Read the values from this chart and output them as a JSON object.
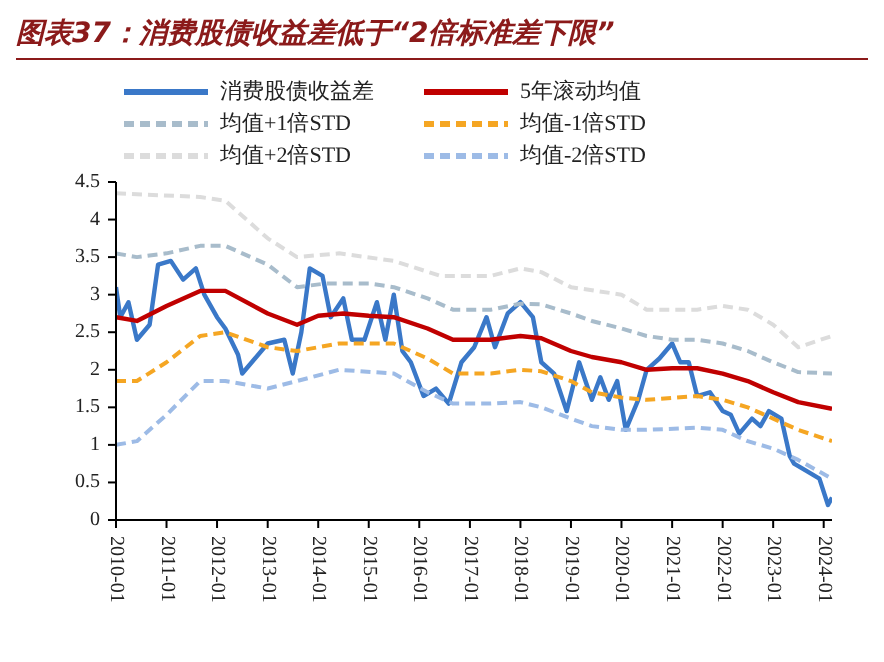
{
  "chart_data": {
    "type": "line",
    "title": "图表37：消费股债收益差低于“2倍标准差下限”",
    "legend": "top",
    "grid": false,
    "marker": "none",
    "xlim": [
      "2010-01",
      "2024-03"
    ],
    "xticks": [
      "2010-01",
      "2011-01",
      "2012-01",
      "2013-01",
      "2014-01",
      "2015-01",
      "2016-01",
      "2017-01",
      "2018-01",
      "2019-01",
      "2020-01",
      "2021-01",
      "2022-01",
      "2023-01",
      "2024-01"
    ],
    "ylim": [
      0,
      4.5
    ],
    "yticks": [
      0,
      0.5,
      1,
      1.5,
      2,
      2.5,
      3,
      3.5,
      4,
      4.5
    ],
    "series": [
      {
        "name": "消费股债收益差",
        "color": "#3a78c8",
        "line_style": "solid",
        "x": [
          "2010-01",
          "2010-02",
          "2010-04",
          "2010-06",
          "2010-09",
          "2010-11",
          "2011-02",
          "2011-05",
          "2011-08",
          "2011-10",
          "2012-01",
          "2012-03",
          "2012-06",
          "2012-07",
          "2012-10",
          "2013-01",
          "2013-05",
          "2013-07",
          "2013-09",
          "2013-11",
          "2014-02",
          "2014-04",
          "2014-07",
          "2014-09",
          "2014-12",
          "2015-03",
          "2015-05",
          "2015-07",
          "2015-09",
          "2015-11",
          "2016-02",
          "2016-05",
          "2016-08",
          "2016-11",
          "2017-02",
          "2017-05",
          "2017-07",
          "2017-10",
          "2018-01",
          "2018-04",
          "2018-06",
          "2018-09",
          "2018-12",
          "2019-03",
          "2019-06",
          "2019-08",
          "2019-10",
          "2019-12",
          "2020-02",
          "2020-05",
          "2020-07",
          "2020-10",
          "2021-01",
          "2021-03",
          "2021-05",
          "2021-07",
          "2021-10",
          "2022-01",
          "2022-03",
          "2022-05",
          "2022-08",
          "2022-10",
          "2022-12",
          "2023-03",
          "2023-05",
          "2023-06",
          "2023-09",
          "2023-12",
          "2024-02",
          "2024-03"
        ],
        "values": [
          3.1,
          2.7,
          2.9,
          2.4,
          2.6,
          3.4,
          3.45,
          3.2,
          3.35,
          3.0,
          2.7,
          2.55,
          2.2,
          1.95,
          2.15,
          2.35,
          2.4,
          1.95,
          2.5,
          3.35,
          3.25,
          2.7,
          2.95,
          2.4,
          2.4,
          2.9,
          2.4,
          3.0,
          2.25,
          2.1,
          1.65,
          1.75,
          1.55,
          2.1,
          2.3,
          2.7,
          2.3,
          2.75,
          2.9,
          2.7,
          2.1,
          1.95,
          1.45,
          2.1,
          1.6,
          1.9,
          1.6,
          1.85,
          1.2,
          1.6,
          2.0,
          2.15,
          2.35,
          2.1,
          2.1,
          1.65,
          1.7,
          1.45,
          1.4,
          1.15,
          1.35,
          1.25,
          1.45,
          1.35,
          0.85,
          0.75,
          0.65,
          0.55,
          0.2,
          0.3
        ]
      },
      {
        "name": "5年滚动均值",
        "color": "#c00000",
        "line_style": "solid",
        "x": [
          "2010-01",
          "2010-06",
          "2011-01",
          "2011-09",
          "2012-03",
          "2013-01",
          "2013-08",
          "2014-01",
          "2014-07",
          "2015-01",
          "2015-07",
          "2016-03",
          "2016-09",
          "2017-06",
          "2018-01",
          "2018-06",
          "2019-01",
          "2019-06",
          "2020-01",
          "2020-07",
          "2021-01",
          "2021-07",
          "2022-01",
          "2022-07",
          "2023-01",
          "2023-07",
          "2024-03"
        ],
        "values": [
          2.7,
          2.65,
          2.85,
          3.05,
          3.05,
          2.75,
          2.6,
          2.72,
          2.75,
          2.72,
          2.7,
          2.55,
          2.4,
          2.4,
          2.45,
          2.42,
          2.25,
          2.17,
          2.1,
          2.0,
          2.02,
          2.02,
          1.95,
          1.85,
          1.7,
          1.57,
          1.48
        ]
      },
      {
        "name": "均值+1倍STD",
        "color": "#a8bccb",
        "line_style": "dashed",
        "x": [
          "2010-01",
          "2010-06",
          "2011-01",
          "2011-09",
          "2012-03",
          "2013-01",
          "2013-08",
          "2014-03",
          "2015-01",
          "2015-07",
          "2016-03",
          "2016-09",
          "2017-06",
          "2018-01",
          "2018-06",
          "2019-01",
          "2019-06",
          "2020-01",
          "2020-07",
          "2021-01",
          "2021-07",
          "2022-01",
          "2022-07",
          "2023-01",
          "2023-07",
          "2024-03"
        ],
        "values": [
          3.55,
          3.5,
          3.55,
          3.65,
          3.65,
          3.4,
          3.1,
          3.15,
          3.15,
          3.1,
          2.95,
          2.8,
          2.8,
          2.88,
          2.87,
          2.75,
          2.65,
          2.55,
          2.45,
          2.4,
          2.4,
          2.35,
          2.25,
          2.1,
          1.97,
          1.95
        ]
      },
      {
        "name": "均值-1倍STD",
        "color": "#f5a623",
        "line_style": "dashed",
        "x": [
          "2010-01",
          "2010-06",
          "2011-01",
          "2011-09",
          "2012-03",
          "2013-01",
          "2013-08",
          "2014-06",
          "2015-07",
          "2016-03",
          "2016-09",
          "2017-06",
          "2018-01",
          "2018-06",
          "2019-01",
          "2019-06",
          "2020-01",
          "2020-07",
          "2021-07",
          "2022-01",
          "2022-07",
          "2023-01",
          "2023-07",
          "2024-03"
        ],
        "values": [
          1.85,
          1.85,
          2.1,
          2.45,
          2.5,
          2.3,
          2.25,
          2.35,
          2.35,
          2.15,
          1.95,
          1.95,
          2.0,
          1.98,
          1.85,
          1.7,
          1.63,
          1.6,
          1.65,
          1.6,
          1.5,
          1.35,
          1.2,
          1.05
        ]
      },
      {
        "name": "均值+2倍STD",
        "color": "#dcdcdc",
        "line_style": "dashed",
        "x": [
          "2010-01",
          "2011-09",
          "2012-03",
          "2013-01",
          "2013-08",
          "2014-06",
          "2015-07",
          "2016-06",
          "2017-06",
          "2018-01",
          "2018-06",
          "2019-01",
          "2020-01",
          "2020-07",
          "2021-07",
          "2022-01",
          "2022-07",
          "2023-01",
          "2023-07",
          "2024-03"
        ],
        "values": [
          4.35,
          4.3,
          4.25,
          3.75,
          3.5,
          3.55,
          3.45,
          3.25,
          3.25,
          3.35,
          3.3,
          3.1,
          3.0,
          2.8,
          2.8,
          2.85,
          2.8,
          2.6,
          2.3,
          2.45
        ]
      },
      {
        "name": "均值-2倍STD",
        "color": "#9dbbe6",
        "line_style": "dashed",
        "x": [
          "2010-01",
          "2010-06",
          "2011-01",
          "2011-09",
          "2012-03",
          "2013-01",
          "2013-08",
          "2014-06",
          "2015-07",
          "2016-03",
          "2016-09",
          "2017-06",
          "2018-01",
          "2018-06",
          "2019-01",
          "2019-06",
          "2020-01",
          "2020-07",
          "2021-07",
          "2022-01",
          "2022-07",
          "2023-01",
          "2023-07",
          "2024-03"
        ],
        "values": [
          1.0,
          1.05,
          1.4,
          1.85,
          1.85,
          1.75,
          1.85,
          2.0,
          1.95,
          1.7,
          1.55,
          1.55,
          1.57,
          1.5,
          1.35,
          1.25,
          1.2,
          1.2,
          1.23,
          1.2,
          1.05,
          0.95,
          0.8,
          0.55
        ]
      }
    ]
  }
}
